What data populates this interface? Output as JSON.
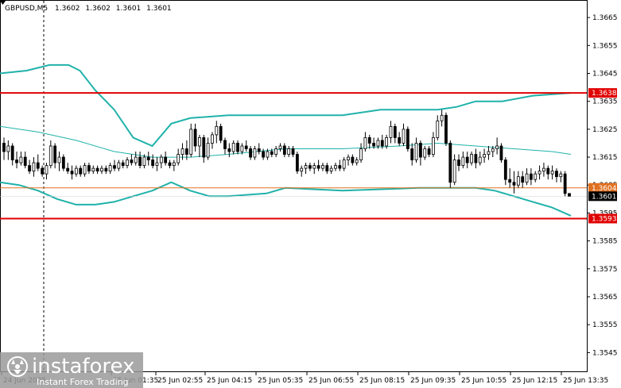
{
  "chart_data": {
    "type": "candlestick",
    "symbol": "GBPUSD,M5",
    "ohlc_header": [
      "1.3602",
      "1.3602",
      "1.3601",
      "1.3601"
    ],
    "ylim": [
      1.3538,
      1.3671
    ],
    "y_ticks": [
      "1.3665",
      "1.3655",
      "1.3645",
      "1.3635",
      "1.3625",
      "1.3615",
      "1.3605",
      "1.3595",
      "1.3585",
      "1.3575",
      "1.3565",
      "1.3555",
      "1.3545"
    ],
    "x_ticks": [
      "24 Jun 2025",
      "25 Jun 01:35",
      "25 Jun 02:55",
      "25 Jun 04:15",
      "25 Jun 05:35",
      "25 Jun 06:55",
      "25 Jun 08:15",
      "25 Jun 09:35",
      "25 Jun 10:55",
      "25 Jun 12:15",
      "25 Jun 13:35"
    ],
    "levels": [
      {
        "price": 1.3638,
        "label": "1.3638",
        "color": "#e00000"
      },
      {
        "price": 1.3593,
        "label": "1.3593",
        "color": "#e00000"
      },
      {
        "price": 1.3604,
        "label": "1.3604",
        "color": "#e07020"
      },
      {
        "price": 1.3601,
        "label": "1.3601",
        "color": "#000000"
      }
    ],
    "bands": {
      "upper": [
        [
          0,
          1.3645
        ],
        [
          7,
          1.3646
        ],
        [
          13,
          1.3648
        ],
        [
          18,
          1.3648
        ],
        [
          21,
          1.3646
        ],
        [
          25,
          1.3639
        ],
        [
          30,
          1.3632
        ],
        [
          35,
          1.3622
        ],
        [
          40,
          1.3619
        ],
        [
          45,
          1.3627
        ],
        [
          50,
          1.3629
        ],
        [
          60,
          1.363
        ],
        [
          75,
          1.363
        ],
        [
          90,
          1.363
        ],
        [
          100,
          1.3632
        ],
        [
          115,
          1.3632
        ],
        [
          120,
          1.3633
        ],
        [
          125,
          1.3635
        ],
        [
          128,
          1.3635
        ],
        [
          132,
          1.3635
        ],
        [
          140,
          1.3637
        ],
        [
          150,
          1.3638
        ]
      ],
      "middle": [
        [
          0,
          1.3626
        ],
        [
          10,
          1.3624
        ],
        [
          20,
          1.3621
        ],
        [
          30,
          1.3617
        ],
        [
          40,
          1.3615
        ],
        [
          50,
          1.3615
        ],
        [
          60,
          1.3616
        ],
        [
          75,
          1.3618
        ],
        [
          90,
          1.3618
        ],
        [
          105,
          1.3619
        ],
        [
          115,
          1.362
        ],
        [
          125,
          1.3619
        ],
        [
          135,
          1.3618
        ],
        [
          145,
          1.3617
        ],
        [
          150,
          1.3616
        ]
      ],
      "lower": [
        [
          0,
          1.3606
        ],
        [
          5,
          1.3605
        ],
        [
          10,
          1.3603
        ],
        [
          15,
          1.36
        ],
        [
          20,
          1.3598
        ],
        [
          25,
          1.3598
        ],
        [
          30,
          1.3599
        ],
        [
          35,
          1.3601
        ],
        [
          40,
          1.3603
        ],
        [
          45,
          1.3606
        ],
        [
          50,
          1.3603
        ],
        [
          55,
          1.3601
        ],
        [
          60,
          1.3601
        ],
        [
          70,
          1.3602
        ],
        [
          75,
          1.3604
        ],
        [
          90,
          1.3603
        ],
        [
          110,
          1.3604
        ],
        [
          125,
          1.3604
        ],
        [
          130,
          1.3603
        ],
        [
          135,
          1.3601
        ],
        [
          140,
          1.3599
        ],
        [
          145,
          1.3597
        ],
        [
          150,
          1.3594
        ]
      ]
    },
    "candles": [
      [
        1.362,
        1.3622,
        1.3614,
        1.3617
      ],
      [
        1.3617,
        1.3621,
        1.3614,
        1.3619
      ],
      [
        1.3619,
        1.362,
        1.3612,
        1.3614
      ],
      [
        1.3614,
        1.3617,
        1.3611,
        1.3613
      ],
      [
        1.3613,
        1.3617,
        1.3612,
        1.3615
      ],
      [
        1.3615,
        1.3617,
        1.3611,
        1.3612
      ],
      [
        1.3612,
        1.3614,
        1.3609,
        1.361
      ],
      [
        1.361,
        1.3615,
        1.3608,
        1.3613
      ],
      [
        1.3613,
        1.3616,
        1.361,
        1.3611
      ],
      [
        1.3611,
        1.3612,
        1.3608,
        1.3609
      ],
      [
        1.3609,
        1.3613,
        1.3607,
        1.3612
      ],
      [
        1.3612,
        1.3621,
        1.3611,
        1.3619
      ],
      [
        1.3619,
        1.362,
        1.3611,
        1.3613
      ],
      [
        1.3613,
        1.3617,
        1.361,
        1.3615
      ],
      [
        1.3615,
        1.3616,
        1.361,
        1.3611
      ],
      [
        1.3611,
        1.3613,
        1.3609,
        1.361
      ],
      [
        1.361,
        1.3612,
        1.3607,
        1.3609
      ],
      [
        1.3609,
        1.3612,
        1.3608,
        1.3611
      ],
      [
        1.3611,
        1.3612,
        1.3608,
        1.3609
      ],
      [
        1.3609,
        1.3613,
        1.3608,
        1.3612
      ],
      [
        1.3612,
        1.3613,
        1.3609,
        1.361
      ],
      [
        1.361,
        1.3612,
        1.3609,
        1.3611
      ],
      [
        1.3611,
        1.3612,
        1.3609,
        1.361
      ],
      [
        1.361,
        1.3612,
        1.3609,
        1.3611
      ],
      [
        1.3611,
        1.3612,
        1.3609,
        1.361
      ],
      [
        1.361,
        1.3613,
        1.3609,
        1.3612
      ],
      [
        1.3612,
        1.3614,
        1.361,
        1.3611
      ],
      [
        1.3611,
        1.3614,
        1.361,
        1.3613
      ],
      [
        1.3613,
        1.3614,
        1.3611,
        1.3612
      ],
      [
        1.3612,
        1.3615,
        1.3611,
        1.3614
      ],
      [
        1.3614,
        1.3616,
        1.3612,
        1.3613
      ],
      [
        1.3613,
        1.3617,
        1.3612,
        1.3615
      ],
      [
        1.3615,
        1.3617,
        1.3611,
        1.3612
      ],
      [
        1.3612,
        1.3616,
        1.3611,
        1.3615
      ],
      [
        1.3615,
        1.3617,
        1.3612,
        1.3614
      ],
      [
        1.3614,
        1.3616,
        1.3611,
        1.3612
      ],
      [
        1.3612,
        1.3615,
        1.361,
        1.3613
      ],
      [
        1.3613,
        1.3616,
        1.3611,
        1.3615
      ],
      [
        1.3615,
        1.3617,
        1.3612,
        1.3613
      ],
      [
        1.3613,
        1.3614,
        1.3611,
        1.3612
      ],
      [
        1.3612,
        1.3614,
        1.361,
        1.3613
      ],
      [
        1.3613,
        1.3618,
        1.3612,
        1.3616
      ],
      [
        1.3616,
        1.362,
        1.3614,
        1.3618
      ],
      [
        1.3618,
        1.3621,
        1.3614,
        1.3616
      ],
      [
        1.3616,
        1.3627,
        1.3615,
        1.3625
      ],
      [
        1.3625,
        1.3627,
        1.3617,
        1.3619
      ],
      [
        1.3619,
        1.3623,
        1.3615,
        1.3622
      ],
      [
        1.3622,
        1.3623,
        1.3613,
        1.3615
      ],
      [
        1.3615,
        1.3622,
        1.3614,
        1.362
      ],
      [
        1.362,
        1.3624,
        1.3618,
        1.3623
      ],
      [
        1.3623,
        1.3628,
        1.362,
        1.3626
      ],
      [
        1.3626,
        1.3627,
        1.362,
        1.3621
      ],
      [
        1.3621,
        1.3622,
        1.3616,
        1.3618
      ],
      [
        1.3618,
        1.362,
        1.3615,
        1.3617
      ],
      [
        1.3617,
        1.3621,
        1.3616,
        1.362
      ],
      [
        1.362,
        1.3621,
        1.3616,
        1.3617
      ],
      [
        1.3617,
        1.362,
        1.3616,
        1.3619
      ],
      [
        1.3619,
        1.3621,
        1.3617,
        1.3618
      ],
      [
        1.3618,
        1.3619,
        1.3614,
        1.3615
      ],
      [
        1.3615,
        1.3619,
        1.3614,
        1.3618
      ],
      [
        1.3618,
        1.362,
        1.3616,
        1.3617
      ],
      [
        1.3617,
        1.3618,
        1.3614,
        1.3615
      ],
      [
        1.3615,
        1.3618,
        1.3614,
        1.3617
      ],
      [
        1.3617,
        1.3618,
        1.3615,
        1.3616
      ],
      [
        1.3616,
        1.3619,
        1.3615,
        1.3618
      ],
      [
        1.3618,
        1.362,
        1.3617,
        1.3619
      ],
      [
        1.3619,
        1.362,
        1.3615,
        1.3616
      ],
      [
        1.3616,
        1.3619,
        1.3615,
        1.3618
      ],
      [
        1.3618,
        1.3619,
        1.3615,
        1.3616
      ],
      [
        1.3616,
        1.3617,
        1.3609,
        1.361
      ],
      [
        1.361,
        1.3612,
        1.3608,
        1.3611
      ],
      [
        1.3611,
        1.3613,
        1.3609,
        1.3612
      ],
      [
        1.3612,
        1.3613,
        1.361,
        1.3611
      ],
      [
        1.3611,
        1.3613,
        1.3609,
        1.3612
      ],
      [
        1.3612,
        1.3614,
        1.361,
        1.3611
      ],
      [
        1.3611,
        1.3613,
        1.361,
        1.3612
      ],
      [
        1.3612,
        1.3613,
        1.3609,
        1.361
      ],
      [
        1.361,
        1.3612,
        1.3609,
        1.3611
      ],
      [
        1.3611,
        1.3613,
        1.361,
        1.3612
      ],
      [
        1.3612,
        1.3614,
        1.361,
        1.3611
      ],
      [
        1.3611,
        1.3615,
        1.361,
        1.3614
      ],
      [
        1.3614,
        1.3616,
        1.3612,
        1.3615
      ],
      [
        1.3615,
        1.3616,
        1.3612,
        1.3613
      ],
      [
        1.3613,
        1.3615,
        1.3612,
        1.3614
      ],
      [
        1.3614,
        1.362,
        1.3613,
        1.3618
      ],
      [
        1.3618,
        1.3624,
        1.3617,
        1.3622
      ],
      [
        1.3622,
        1.3623,
        1.3618,
        1.362
      ],
      [
        1.362,
        1.3622,
        1.3618,
        1.3619
      ],
      [
        1.3619,
        1.3622,
        1.3618,
        1.3621
      ],
      [
        1.3621,
        1.3623,
        1.3618,
        1.3619
      ],
      [
        1.3619,
        1.3623,
        1.3618,
        1.3622
      ],
      [
        1.3622,
        1.3628,
        1.362,
        1.3626
      ],
      [
        1.3626,
        1.3627,
        1.362,
        1.3622
      ],
      [
        1.3622,
        1.3624,
        1.3619,
        1.362
      ],
      [
        1.362,
        1.3627,
        1.3619,
        1.3625
      ],
      [
        1.3625,
        1.3626,
        1.3617,
        1.3618
      ],
      [
        1.3618,
        1.362,
        1.3612,
        1.3614
      ],
      [
        1.3614,
        1.3622,
        1.3613,
        1.362
      ],
      [
        1.362,
        1.3621,
        1.3612,
        1.3615
      ],
      [
        1.3615,
        1.3619,
        1.3614,
        1.3618
      ],
      [
        1.3618,
        1.3619,
        1.3615,
        1.3616
      ],
      [
        1.3616,
        1.3624,
        1.3615,
        1.3622
      ],
      [
        1.3622,
        1.363,
        1.3621,
        1.3628
      ],
      [
        1.3628,
        1.3632,
        1.3626,
        1.363
      ],
      [
        1.363,
        1.3631,
        1.3619,
        1.362
      ],
      [
        1.362,
        1.3621,
        1.3604,
        1.3606
      ],
      [
        1.3606,
        1.3616,
        1.3605,
        1.3614
      ],
      [
        1.3614,
        1.3616,
        1.361,
        1.3612
      ],
      [
        1.3612,
        1.3617,
        1.3611,
        1.3615
      ],
      [
        1.3615,
        1.3617,
        1.3611,
        1.3613
      ],
      [
        1.3613,
        1.3617,
        1.3612,
        1.3616
      ],
      [
        1.3616,
        1.3618,
        1.3611,
        1.3613
      ],
      [
        1.3613,
        1.3617,
        1.3612,
        1.3615
      ],
      [
        1.3615,
        1.3618,
        1.3613,
        1.3616
      ],
      [
        1.3616,
        1.3619,
        1.3614,
        1.3617
      ],
      [
        1.3617,
        1.3619,
        1.3615,
        1.3618
      ],
      [
        1.3618,
        1.3622,
        1.3616,
        1.3619
      ],
      [
        1.3619,
        1.362,
        1.3613,
        1.3614
      ],
      [
        1.3614,
        1.3615,
        1.3605,
        1.3607
      ],
      [
        1.3607,
        1.3611,
        1.3604,
        1.3606
      ],
      [
        1.3606,
        1.361,
        1.3602,
        1.3605
      ],
      [
        1.3605,
        1.361,
        1.3604,
        1.3608
      ],
      [
        1.3608,
        1.361,
        1.3604,
        1.3606
      ],
      [
        1.3606,
        1.3611,
        1.3605,
        1.3609
      ],
      [
        1.3609,
        1.3611,
        1.3605,
        1.3607
      ],
      [
        1.3607,
        1.361,
        1.3606,
        1.3609
      ],
      [
        1.3609,
        1.3612,
        1.3607,
        1.361
      ],
      [
        1.361,
        1.3613,
        1.3608,
        1.3611
      ],
      [
        1.3611,
        1.3612,
        1.3607,
        1.3609
      ],
      [
        1.3609,
        1.3612,
        1.3607,
        1.361
      ],
      [
        1.361,
        1.3611,
        1.3606,
        1.3608
      ],
      [
        1.3608,
        1.361,
        1.3606,
        1.3609
      ],
      [
        1.3609,
        1.361,
        1.3601,
        1.3602
      ],
      [
        1.3602,
        1.3602,
        1.3601,
        1.3601
      ]
    ],
    "bands_extra_note": ""
  },
  "watermark": {
    "brand": "instaforex",
    "tagline": "Instant Forex Trading"
  },
  "colors": {
    "band": "#20b2aa",
    "level": "#e00000",
    "candle": "#000000",
    "grid_dash": "#000000",
    "watermark_bg": "#9a9a9a"
  }
}
